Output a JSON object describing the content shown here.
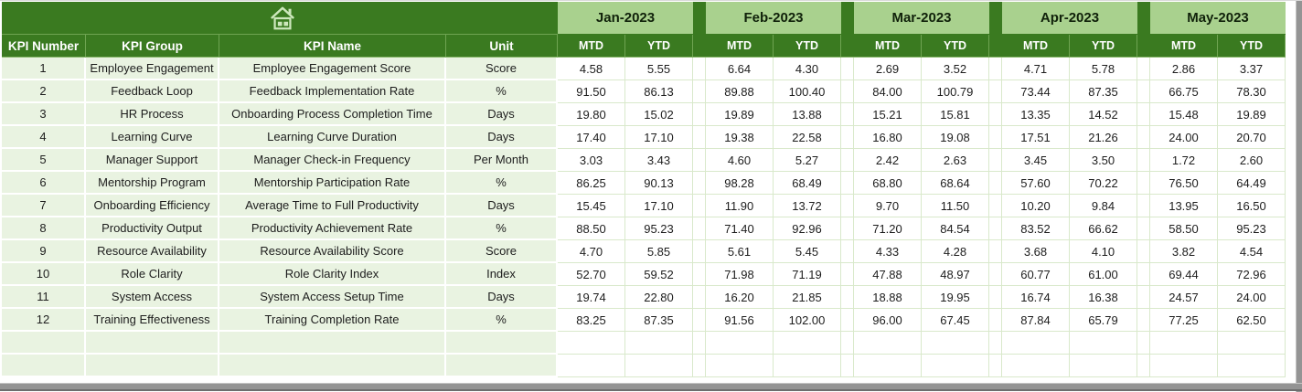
{
  "sheet": {
    "corner_icon": "home-icon",
    "left_headers": [
      "KPI Number",
      "KPI Group",
      "KPI Name",
      "Unit"
    ],
    "months": [
      "Jan-2023",
      "Feb-2023",
      "Mar-2023",
      "Apr-2023",
      "May-2023"
    ],
    "period_headers": [
      "MTD",
      "YTD"
    ],
    "rows": [
      {
        "kpi_number": "1",
        "kpi_group": "Employee Engagement",
        "kpi_name": "Employee Engagement Score",
        "unit": "Score",
        "values": [
          "4.58",
          "5.55",
          "6.64",
          "4.30",
          "2.69",
          "3.52",
          "4.71",
          "5.78",
          "2.86",
          "3.37"
        ]
      },
      {
        "kpi_number": "2",
        "kpi_group": "Feedback Loop",
        "kpi_name": "Feedback Implementation Rate",
        "unit": "%",
        "values": [
          "91.50",
          "86.13",
          "89.88",
          "100.40",
          "84.00",
          "100.79",
          "73.44",
          "87.35",
          "66.75",
          "78.30"
        ]
      },
      {
        "kpi_number": "3",
        "kpi_group": "HR Process",
        "kpi_name": "Onboarding Process Completion Time",
        "unit": "Days",
        "values": [
          "19.80",
          "15.02",
          "19.89",
          "13.88",
          "15.21",
          "15.81",
          "13.35",
          "14.52",
          "15.48",
          "19.89"
        ]
      },
      {
        "kpi_number": "4",
        "kpi_group": "Learning Curve",
        "kpi_name": "Learning Curve Duration",
        "unit": "Days",
        "values": [
          "17.40",
          "17.10",
          "19.38",
          "22.58",
          "16.80",
          "19.08",
          "17.51",
          "21.26",
          "24.00",
          "20.70"
        ]
      },
      {
        "kpi_number": "5",
        "kpi_group": "Manager Support",
        "kpi_name": "Manager Check-in Frequency",
        "unit": "Per Month",
        "values": [
          "3.03",
          "3.43",
          "4.60",
          "5.27",
          "2.42",
          "2.63",
          "3.45",
          "3.50",
          "1.72",
          "2.60"
        ]
      },
      {
        "kpi_number": "6",
        "kpi_group": "Mentorship Program",
        "kpi_name": "Mentorship Participation Rate",
        "unit": "%",
        "values": [
          "86.25",
          "90.13",
          "98.28",
          "68.49",
          "68.80",
          "68.64",
          "57.60",
          "70.22",
          "76.50",
          "64.49"
        ]
      },
      {
        "kpi_number": "7",
        "kpi_group": "Onboarding Efficiency",
        "kpi_name": "Average Time to Full Productivity",
        "unit": "Days",
        "values": [
          "15.45",
          "17.10",
          "11.90",
          "13.72",
          "9.70",
          "11.50",
          "10.20",
          "9.84",
          "13.95",
          "16.50"
        ]
      },
      {
        "kpi_number": "8",
        "kpi_group": "Productivity Output",
        "kpi_name": "Productivity Achievement Rate",
        "unit": "%",
        "values": [
          "88.50",
          "95.23",
          "71.40",
          "92.96",
          "71.20",
          "84.54",
          "83.52",
          "66.62",
          "58.50",
          "95.23"
        ]
      },
      {
        "kpi_number": "9",
        "kpi_group": "Resource Availability",
        "kpi_name": "Resource Availability Score",
        "unit": "Score",
        "values": [
          "4.70",
          "5.85",
          "5.61",
          "5.45",
          "4.33",
          "4.28",
          "3.68",
          "4.10",
          "3.82",
          "4.54"
        ]
      },
      {
        "kpi_number": "10",
        "kpi_group": "Role Clarity",
        "kpi_name": "Role Clarity Index",
        "unit": "Index",
        "values": [
          "52.70",
          "59.52",
          "71.98",
          "71.19",
          "47.88",
          "48.97",
          "60.77",
          "61.00",
          "69.44",
          "72.96"
        ]
      },
      {
        "kpi_number": "11",
        "kpi_group": "System Access",
        "kpi_name": "System Access Setup Time",
        "unit": "Days",
        "values": [
          "19.74",
          "22.80",
          "16.20",
          "21.85",
          "18.88",
          "19.95",
          "16.74",
          "16.38",
          "24.57",
          "24.00"
        ]
      },
      {
        "kpi_number": "12",
        "kpi_group": "Training Effectiveness",
        "kpi_name": "Training Completion Rate",
        "unit": "%",
        "values": [
          "83.25",
          "87.35",
          "91.56",
          "102.00",
          "96.00",
          "67.45",
          "87.84",
          "65.79",
          "77.25",
          "62.50"
        ]
      }
    ],
    "empty_rows": 2,
    "colors": {
      "header_dark_green": "#3A7A20",
      "month_light_green": "#A9D18E",
      "row_light_green": "#E9F3E1",
      "gridline_green": "#D9E9CB",
      "home_icon_green": "#CDE7BC",
      "frame_gray": "#949494"
    }
  }
}
